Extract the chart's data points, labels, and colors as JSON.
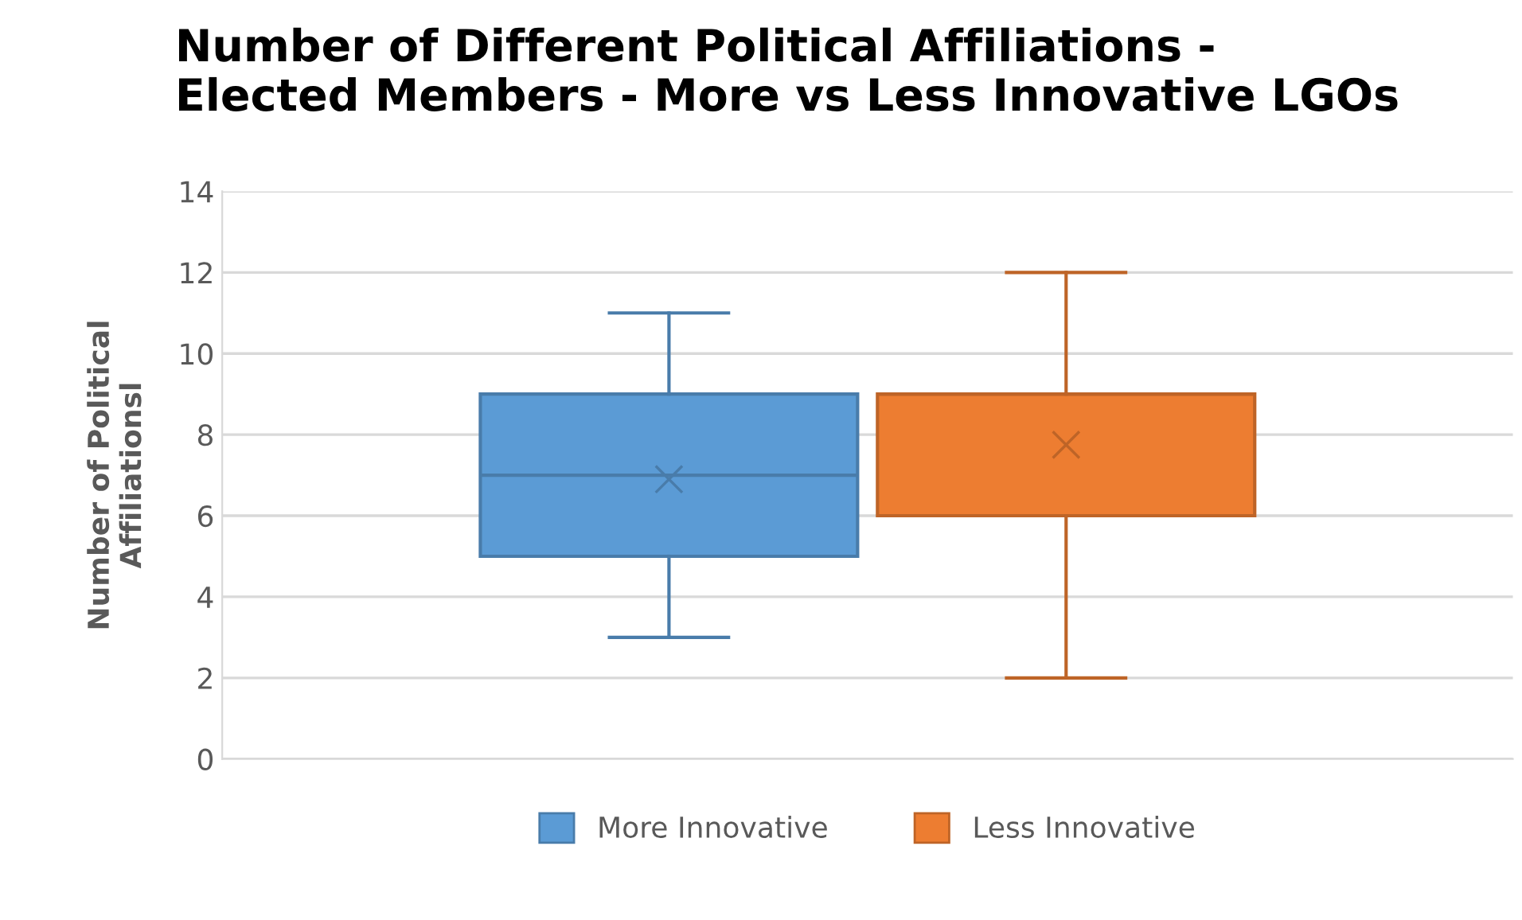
{
  "chart_data": {
    "type": "box",
    "title": "Number of Different Political Affiliations -\nElected Members - More vs Less Innovative LGOs",
    "ylabel": "Number of Political\nAffiliationsl",
    "categories": [
      null
    ],
    "series": [
      {
        "name": "More Innovative",
        "color": "#5b9bd5",
        "boxes": [
          {
            "low": 3,
            "q1": 5,
            "median": 7,
            "q3": 9,
            "high": 11,
            "mean": 6.9
          }
        ]
      },
      {
        "name": "Less Innovative",
        "color": "#ed7d31",
        "boxes": [
          {
            "low": 2,
            "q1": 6,
            "median": 9,
            "q3": 9,
            "high": 12,
            "mean": 7.75
          }
        ]
      }
    ],
    "ylim": [
      0,
      14
    ],
    "yticks": [
      0,
      2,
      4,
      6,
      8,
      10,
      12,
      14
    ],
    "grid": "y",
    "legend": "bottom"
  }
}
